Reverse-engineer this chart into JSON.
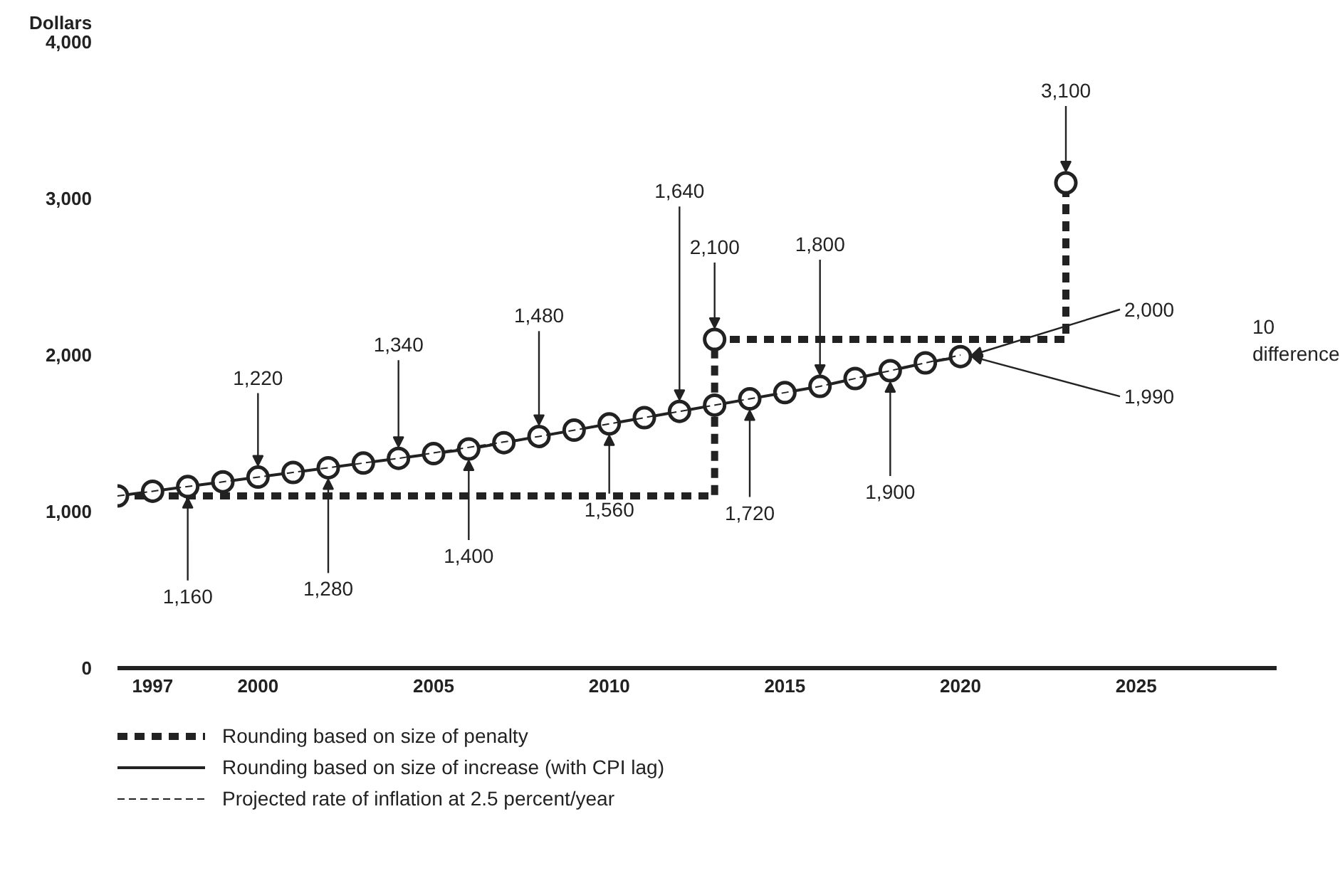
{
  "chart_data": {
    "type": "line",
    "ylabel": "Dollars",
    "xlim": [
      1996,
      2029
    ],
    "ylim": [
      0,
      4000
    ],
    "xticks": [
      1997,
      2000,
      2005,
      2010,
      2015,
      2020,
      2025
    ],
    "yticks": [
      0,
      {
        "value": 1000,
        "label": "1,000"
      },
      {
        "value": 2000,
        "label": "2,000"
      },
      {
        "value": 3000,
        "label": "3,000"
      },
      {
        "value": 4000,
        "label": "4,000"
      }
    ],
    "grid": false,
    "legend": "bottom",
    "series": [
      {
        "name": "Rounding based on size of penalty",
        "line_style": "dashed",
        "color": "#222222",
        "x": [
          1996,
          2013,
          2013,
          2023,
          2023
        ],
        "values": [
          1100,
          1100,
          2100,
          2100,
          3100
        ]
      },
      {
        "name": "Rounding based on size of increase (with CPI lag)",
        "line_style": "solid",
        "marker": "circle",
        "color": "#222222",
        "x": [
          1996,
          1997,
          1998,
          1999,
          2000,
          2001,
          2002,
          2003,
          2004,
          2005,
          2006,
          2007,
          2008,
          2009,
          2010,
          2011,
          2012,
          2013,
          2014,
          2015,
          2016,
          2017,
          2018,
          2019,
          2020
        ],
        "values": [
          1100,
          1130,
          1160,
          1190,
          1220,
          1250,
          1280,
          1310,
          1340,
          1370,
          1400,
          1440,
          1480,
          1520,
          1560,
          1600,
          1640,
          1680,
          1720,
          1760,
          1800,
          1850,
          1900,
          1950,
          1990
        ]
      },
      {
        "name": "Projected rate of inflation at 2.5 percent/year",
        "line_style": "dashed",
        "color": "#222222",
        "x": [
          1996,
          2004,
          2008,
          2012,
          2016,
          2020
        ],
        "values": [
          1100,
          1340,
          1480,
          1640,
          1800,
          2000
        ]
      },
      {
        "type": "scatter",
        "marker": "circle",
        "color": "#222222",
        "x": [
          2013,
          2023
        ],
        "values": [
          2100,
          3100
        ]
      }
    ],
    "annotations": [
      {
        "text": "1,160",
        "x": 1998,
        "y": 1160
      },
      {
        "text": "1,220",
        "x": 2000,
        "y": 1220
      },
      {
        "text": "1,280",
        "x": 2002,
        "y": 1280
      },
      {
        "text": "1,340",
        "x": 2004,
        "y": 1340
      },
      {
        "text": "1,400",
        "x": 2006,
        "y": 1400
      },
      {
        "text": "1,480",
        "x": 2008,
        "y": 1480
      },
      {
        "text": "1,560",
        "x": 2010,
        "y": 1560
      },
      {
        "text": "1,640",
        "x": 2012,
        "y": 1640
      },
      {
        "text": "2,100",
        "x": 2013,
        "y": 2100
      },
      {
        "text": "1,720",
        "x": 2014,
        "y": 1720
      },
      {
        "text": "1,800",
        "x": 2016,
        "y": 1800
      },
      {
        "text": "1,900",
        "x": 2018,
        "y": 1900
      },
      {
        "text": "3,100",
        "x": 2023,
        "y": 3100
      },
      {
        "text": "2,000",
        "x": 2020,
        "y": 2000
      },
      {
        "text": "1,990",
        "x": 2020,
        "y": 1990
      },
      "10 difference"
    ]
  }
}
